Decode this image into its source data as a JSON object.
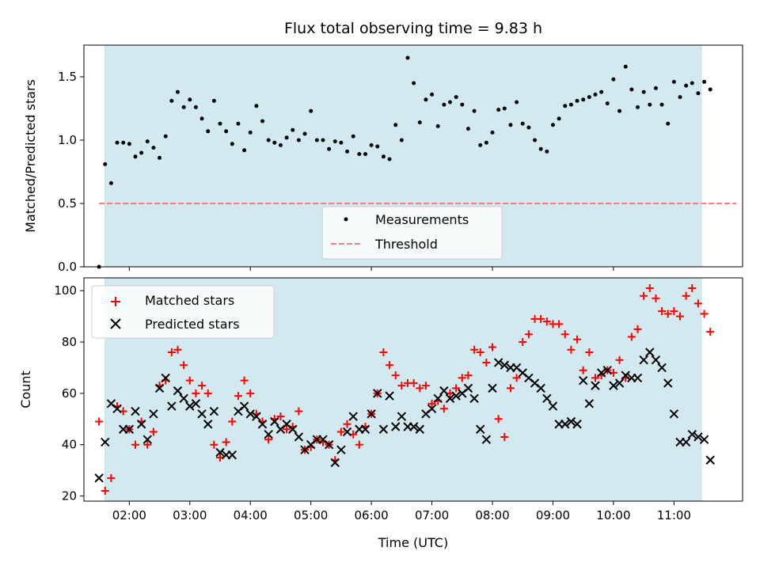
{
  "colors": {
    "shade": "#d3e9f0",
    "shade_edge": "#bcdbe4",
    "threshold": "#f08080",
    "matched": "#ff0000",
    "predicted": "#000000",
    "measurement": "#000000"
  },
  "chart_data": {
    "title": "Flux total observing time = 9.83 h",
    "xlabel": "Time (UTC)",
    "x_tick_labels": [
      "02:00",
      "03:00",
      "04:00",
      "05:00",
      "06:00",
      "07:00",
      "08:00",
      "09:00",
      "10:00",
      "11:00"
    ],
    "xlim": [
      "01:15",
      "12:08"
    ],
    "observing_window": [
      "01:36",
      "11:27"
    ],
    "panels": [
      {
        "type": "scatter",
        "ylabel": "Matched/Predicted stars",
        "ylim": [
          0,
          1.75
        ],
        "y_tick_labels": [
          "0.0",
          "0.5",
          "1.0",
          "1.5"
        ],
        "y_ticks": [
          0,
          0.5,
          1.0,
          1.5
        ],
        "legend_position": "lower-center",
        "threshold": 0.5,
        "legend": [
          "Measurements",
          "Threshold"
        ],
        "series": [
          {
            "name": "Measurements",
            "x": [
              "01:30",
              "01:36",
              "01:42",
              "01:48",
              "01:54",
              "02:00",
              "02:06",
              "02:12",
              "02:18",
              "02:24",
              "02:30",
              "02:36",
              "02:42",
              "02:48",
              "02:54",
              "03:00",
              "03:06",
              "03:12",
              "03:18",
              "03:24",
              "03:30",
              "03:36",
              "03:42",
              "03:48",
              "03:54",
              "04:00",
              "04:06",
              "04:12",
              "04:18",
              "04:24",
              "04:30",
              "04:36",
              "04:42",
              "04:48",
              "04:54",
              "05:00",
              "05:06",
              "05:12",
              "05:18",
              "05:24",
              "05:30",
              "05:36",
              "05:42",
              "05:48",
              "05:54",
              "06:00",
              "06:06",
              "06:12",
              "06:18",
              "06:24",
              "06:30",
              "06:36",
              "06:42",
              "06:48",
              "06:54",
              "07:00",
              "07:06",
              "07:12",
              "07:18",
              "07:24",
              "07:30",
              "07:36",
              "07:42",
              "07:48",
              "07:54",
              "08:00",
              "08:06",
              "08:12",
              "08:18",
              "08:24",
              "08:30",
              "08:36",
              "08:42",
              "08:48",
              "08:54",
              "09:00",
              "09:06",
              "09:12",
              "09:18",
              "09:24",
              "09:30",
              "09:36",
              "09:42",
              "09:48",
              "09:54",
              "10:00",
              "10:06",
              "10:12",
              "10:18",
              "10:24",
              "10:30",
              "10:36",
              "10:42",
              "10:48",
              "10:54",
              "11:00",
              "11:06",
              "11:12",
              "11:18",
              "11:24",
              "11:30",
              "11:36"
            ],
            "y": [
              0.0,
              0.81,
              0.66,
              0.98,
              0.98,
              0.97,
              0.87,
              0.9,
              0.99,
              0.94,
              0.86,
              1.03,
              1.31,
              1.38,
              1.26,
              1.32,
              1.26,
              1.17,
              1.07,
              1.31,
              1.13,
              1.07,
              0.97,
              1.13,
              0.92,
              1.06,
              1.27,
              1.15,
              1.0,
              0.98,
              0.96,
              1.02,
              1.08,
              1.0,
              1.05,
              1.23,
              1.0,
              1.0,
              0.93,
              0.99,
              0.98,
              0.91,
              1.03,
              0.89,
              0.89,
              0.96,
              0.95,
              0.87,
              0.85,
              1.12,
              1.0,
              1.65,
              1.45,
              1.14,
              1.32,
              1.36,
              1.11,
              1.28,
              1.3,
              1.34,
              1.28,
              1.09,
              1.23,
              0.96,
              0.98,
              1.06,
              1.24,
              1.25,
              1.12,
              1.3,
              1.13,
              1.1,
              1.0,
              0.93,
              0.91,
              1.12,
              1.17,
              1.27,
              1.28,
              1.31,
              1.32,
              1.34,
              1.36,
              1.38,
              1.29,
              1.48,
              1.23,
              1.58,
              1.4,
              1.26,
              1.38,
              1.28,
              1.41,
              1.28,
              1.13,
              1.46,
              1.34,
              1.43,
              1.45,
              1.37,
              1.46,
              1.4
            ]
          }
        ]
      },
      {
        "type": "scatter",
        "ylabel": "Count",
        "ylim": [
          18,
          105
        ],
        "y_tick_labels": [
          "20",
          "40",
          "60",
          "80",
          "100"
        ],
        "y_ticks": [
          20,
          40,
          60,
          80,
          100
        ],
        "legend_position": "upper-left",
        "legend": [
          "Matched stars",
          "Predicted stars"
        ],
        "series": [
          {
            "name": "Matched stars",
            "x": [
              "01:30",
              "01:36",
              "01:42",
              "01:48",
              "01:54",
              "02:00",
              "02:06",
              "02:12",
              "02:18",
              "02:24",
              "02:30",
              "02:36",
              "02:42",
              "02:48",
              "02:54",
              "03:00",
              "03:06",
              "03:12",
              "03:18",
              "03:24",
              "03:30",
              "03:36",
              "03:42",
              "03:48",
              "03:54",
              "04:00",
              "04:06",
              "04:12",
              "04:18",
              "04:24",
              "04:30",
              "04:36",
              "04:42",
              "04:48",
              "04:54",
              "05:00",
              "05:06",
              "05:12",
              "05:18",
              "05:24",
              "05:30",
              "05:36",
              "05:42",
              "05:48",
              "05:54",
              "06:00",
              "06:06",
              "06:12",
              "06:18",
              "06:24",
              "06:30",
              "06:36",
              "06:42",
              "06:48",
              "06:54",
              "07:00",
              "07:06",
              "07:12",
              "07:18",
              "07:24",
              "07:30",
              "07:36",
              "07:42",
              "07:48",
              "07:54",
              "08:00",
              "08:06",
              "08:12",
              "08:18",
              "08:24",
              "08:30",
              "08:36",
              "08:42",
              "08:48",
              "08:54",
              "09:00",
              "09:06",
              "09:12",
              "09:18",
              "09:24",
              "09:30",
              "09:36",
              "09:42",
              "09:48",
              "09:54",
              "10:00",
              "10:06",
              "10:12",
              "10:18",
              "10:24",
              "10:30",
              "10:36",
              "10:42",
              "10:48",
              "10:54",
              "11:00",
              "11:06",
              "11:12",
              "11:18",
              "11:24",
              "11:30",
              "11:36"
            ],
            "y": [
              49,
              22,
              27,
              55,
              53,
              46,
              40,
              49,
              40,
              45,
              63,
              65,
              76,
              77,
              71,
              65,
              60,
              63,
              60,
              40,
              35,
              41,
              49,
              59,
              65,
              60,
              52,
              49,
              42,
              50,
              51,
              46,
              47,
              53,
              38,
              39,
              42,
              41,
              40,
              34,
              45,
              48,
              44,
              40,
              47,
              52,
              60,
              76,
              71,
              67,
              63,
              64,
              64,
              62,
              63,
              56,
              57,
              54,
              60,
              62,
              66,
              67,
              77,
              76,
              72,
              78,
              50,
              43,
              62,
              66,
              80,
              83,
              89,
              89,
              88,
              87,
              87,
              83,
              77,
              81,
              69,
              76,
              66,
              67,
              69,
              68,
              73,
              66,
              82,
              85,
              98,
              101,
              97,
              92,
              91,
              92,
              90,
              98,
              101,
              95,
              91,
              84
            ]
          },
          {
            "name": "Predicted stars",
            "x": [
              "01:30",
              "01:36",
              "01:42",
              "01:48",
              "01:54",
              "02:00",
              "02:06",
              "02:12",
              "02:18",
              "02:24",
              "02:30",
              "02:36",
              "02:42",
              "02:48",
              "02:54",
              "03:00",
              "03:06",
              "03:12",
              "03:18",
              "03:24",
              "03:30",
              "03:36",
              "03:42",
              "03:48",
              "03:54",
              "04:00",
              "04:06",
              "04:12",
              "04:18",
              "04:24",
              "04:30",
              "04:36",
              "04:42",
              "04:48",
              "04:54",
              "05:00",
              "05:06",
              "05:12",
              "05:18",
              "05:24",
              "05:30",
              "05:36",
              "05:42",
              "05:48",
              "05:54",
              "06:00",
              "06:06",
              "06:12",
              "06:18",
              "06:24",
              "06:30",
              "06:36",
              "06:42",
              "06:48",
              "06:54",
              "07:00",
              "07:06",
              "07:12",
              "07:18",
              "07:24",
              "07:30",
              "07:36",
              "07:42",
              "07:48",
              "07:54",
              "08:00",
              "08:06",
              "08:12",
              "08:18",
              "08:24",
              "08:30",
              "08:36",
              "08:42",
              "08:48",
              "08:54",
              "09:00",
              "09:06",
              "09:12",
              "09:18",
              "09:24",
              "09:30",
              "09:36",
              "09:42",
              "09:48",
              "09:54",
              "10:00",
              "10:06",
              "10:12",
              "10:18",
              "10:24",
              "10:30",
              "10:36",
              "10:42",
              "10:48",
              "10:54",
              "11:00",
              "11:06",
              "11:12",
              "11:18",
              "11:24",
              "11:30",
              "11:36"
            ],
            "y": [
              27,
              41,
              56,
              54,
              46,
              46,
              53,
              48,
              42,
              52,
              62,
              66,
              55,
              61,
              58,
              55,
              56,
              52,
              48,
              53,
              37,
              36,
              36,
              53,
              55,
              52,
              51,
              48,
              44,
              49,
              46,
              48,
              46,
              43,
              38,
              40,
              42,
              42,
              40,
              33,
              38,
              45,
              51,
              46,
              46,
              52,
              60,
              46,
              59,
              47,
              51,
              47,
              47,
              46,
              52,
              54,
              58,
              61,
              58,
              59,
              60,
              62,
              58,
              46,
              42,
              62,
              72,
              71,
              70,
              70,
              68,
              66,
              64,
              62,
              58,
              55,
              48,
              48,
              49,
              48,
              65,
              56,
              63,
              68,
              69,
              63,
              64,
              67,
              66,
              66,
              73,
              76,
              73,
              70,
              64,
              52,
              41,
              41,
              44,
              43,
              42,
              34
            ]
          }
        ]
      }
    ]
  }
}
